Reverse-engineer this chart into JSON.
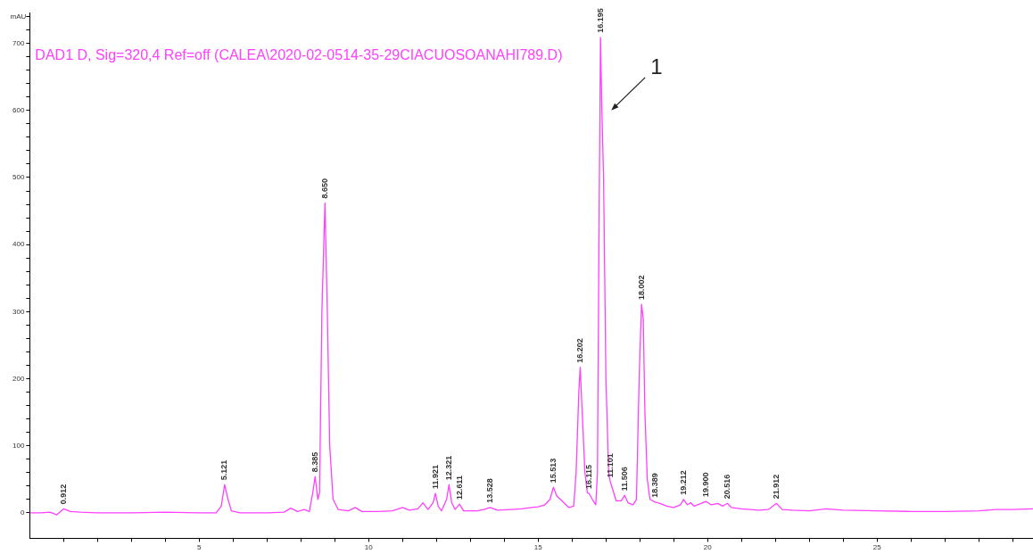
{
  "chart_data": {
    "type": "line",
    "title": "DAD1 D, Sig=320,4 Ref=off (CALEA\\2020-02-0514-35-29CIACUOSOANAHI789.D)",
    "ylabel": "mAU",
    "xlim": [
      0,
      29.6
    ],
    "xticks": [
      {
        "value": 1,
        "label": null
      },
      {
        "value": 2,
        "label": null
      },
      {
        "value": 3,
        "label": null
      },
      {
        "value": 4,
        "label": null
      },
      5,
      {
        "value": 6,
        "label": null
      },
      {
        "value": 7,
        "label": null
      },
      {
        "value": 8,
        "label": null
      },
      {
        "value": 9,
        "label": null
      },
      10,
      {
        "value": 11,
        "label": null
      },
      {
        "value": 12,
        "label": null
      },
      {
        "value": 13,
        "label": null
      },
      {
        "value": 14,
        "label": null
      },
      15,
      {
        "value": 16,
        "label": null
      },
      {
        "value": 17,
        "label": null
      },
      {
        "value": 18,
        "label": null
      },
      {
        "value": 19,
        "label": null
      },
      20,
      {
        "value": 21,
        "label": null
      },
      {
        "value": 22,
        "label": null
      },
      {
        "value": 23,
        "label": null
      },
      {
        "value": 24,
        "label": null
      },
      25,
      {
        "value": 26,
        "label": null
      },
      {
        "value": 27,
        "label": null
      },
      {
        "value": 28,
        "label": null
      },
      {
        "value": 29,
        "label": null
      }
    ],
    "ylim": [
      -38,
      745
    ],
    "yticks": [
      0,
      {
        "value": 20,
        "label": null
      },
      {
        "value": 40,
        "label": null
      },
      {
        "value": 60,
        "label": null
      },
      {
        "value": 80,
        "label": null
      },
      100,
      {
        "value": 120,
        "label": null
      },
      {
        "value": 140,
        "label": null
      },
      {
        "value": 160,
        "label": null
      },
      {
        "value": 180,
        "label": null
      },
      200,
      {
        "value": 220,
        "label": null
      },
      {
        "value": 240,
        "label": null
      },
      {
        "value": 260,
        "label": null
      },
      {
        "value": 280,
        "label": null
      },
      300,
      {
        "value": 320,
        "label": null
      },
      {
        "value": 340,
        "label": null
      },
      {
        "value": 360,
        "label": null
      },
      {
        "value": 380,
        "label": null
      },
      400,
      {
        "value": 420,
        "label": null
      },
      {
        "value": 440,
        "label": null
      },
      {
        "value": 460,
        "label": null
      },
      {
        "value": 480,
        "label": null
      },
      500,
      {
        "value": 520,
        "label": null
      },
      {
        "value": 540,
        "label": null
      },
      {
        "value": 560,
        "label": null
      },
      {
        "value": 580,
        "label": null
      },
      600,
      {
        "value": 620,
        "label": null
      },
      {
        "value": 640,
        "label": null
      },
      {
        "value": 660,
        "label": null
      },
      {
        "value": 680,
        "label": null
      },
      700,
      {
        "value": 720,
        "label": null
      },
      {
        "value": 740,
        "label": null
      }
    ],
    "grid": false,
    "legend": false,
    "marker": "none",
    "line_style": "solid",
    "series": [
      {
        "color": "#ff40ff",
        "x": [
          0,
          0.3,
          0.6,
          0.8,
          1.0,
          1.2,
          1.5,
          2,
          3,
          4,
          5,
          5.5,
          5.65,
          5.75,
          5.85,
          5.95,
          6.2,
          7,
          7.5,
          7.7,
          7.9,
          8.1,
          8.25,
          8.35,
          8.42,
          8.5,
          8.55,
          8.62,
          8.71,
          8.78,
          8.85,
          8.95,
          9.1,
          9.4,
          9.6,
          9.8,
          10.3,
          10.7,
          11.0,
          11.2,
          11.45,
          11.6,
          11.75,
          11.9,
          11.97,
          12.05,
          12.15,
          12.3,
          12.37,
          12.45,
          12.55,
          12.68,
          12.8,
          13.2,
          13.4,
          13.58,
          13.8,
          14.2,
          14.5,
          14.8,
          15.0,
          15.2,
          15.35,
          15.45,
          15.55,
          15.7,
          15.9,
          16.05,
          16.12,
          16.2,
          16.24,
          16.3,
          16.38,
          16.45,
          16.5,
          16.6,
          16.7,
          16.75,
          16.8,
          16.84,
          16.88,
          16.93,
          17.0,
          17.08,
          17.13,
          17.2,
          17.3,
          17.45,
          17.55,
          17.65,
          17.8,
          17.9,
          17.98,
          18.05,
          18.1,
          18.15,
          18.22,
          18.3,
          18.45,
          18.6,
          18.8,
          19.0,
          19.2,
          19.29,
          19.4,
          19.5,
          19.6,
          19.8,
          19.95,
          20.1,
          20.3,
          20.45,
          20.58,
          20.7,
          21.0,
          21.5,
          21.8,
          22.03,
          22.2,
          22.5,
          23,
          23.5,
          24,
          25,
          26,
          27,
          28,
          28.5,
          29,
          29.6
        ],
        "values": [
          0,
          0,
          1,
          -3,
          6,
          2,
          1,
          0,
          0,
          1,
          0,
          0,
          10,
          42,
          20,
          3,
          0,
          0,
          1,
          7,
          2,
          5,
          2,
          30,
          54,
          20,
          30,
          300,
          462,
          300,
          100,
          20,
          5,
          3,
          8,
          2,
          2,
          3,
          8,
          4,
          6,
          15,
          5,
          15,
          29,
          10,
          3,
          20,
          42,
          15,
          5,
          13,
          3,
          3,
          5,
          8,
          4,
          5,
          6,
          8,
          9,
          12,
          20,
          38,
          25,
          18,
          8,
          10,
          60,
          180,
          217,
          150,
          60,
          30,
          29,
          20,
          12,
          60,
          450,
          709,
          600,
          500,
          200,
          60,
          46,
          35,
          18,
          18,
          26,
          15,
          12,
          20,
          200,
          311,
          290,
          150,
          50,
          20,
          16,
          14,
          10,
          8,
          12,
          20,
          12,
          15,
          10,
          14,
          17,
          12,
          14,
          10,
          14,
          8,
          6,
          4,
          5,
          14,
          5,
          4,
          3,
          6,
          4,
          3,
          2,
          2,
          3,
          5,
          5,
          6
        ]
      }
    ],
    "annotations": [
      {
        "text": "0.912",
        "x": 1.0,
        "y": 6
      },
      {
        "text": "5.121",
        "x": 5.75,
        "y": 42
      },
      {
        "text": "8.385",
        "x": 8.42,
        "y": 54
      },
      {
        "text": "8.650",
        "x": 8.71,
        "y": 462
      },
      {
        "text": "11.921",
        "x": 11.97,
        "y": 29
      },
      {
        "text": "12.321",
        "x": 12.37,
        "y": 42
      },
      {
        "text": "12.611",
        "x": 12.68,
        "y": 13
      },
      {
        "text": "13.528",
        "x": 13.58,
        "y": 8
      },
      {
        "text": "15.513",
        "x": 15.45,
        "y": 38
      },
      {
        "text": "16.202",
        "x": 16.24,
        "y": 217
      },
      {
        "text": "16.115",
        "x": 16.5,
        "y": 29
      },
      {
        "text": "16.195",
        "x": 16.84,
        "y": 709
      },
      {
        "text": "11.101",
        "x": 17.13,
        "y": 46
      },
      {
        "text": "11.506",
        "x": 17.55,
        "y": 26
      },
      {
        "text": "18.002",
        "x": 18.05,
        "y": 311
      },
      {
        "text": "18.389",
        "x": 18.45,
        "y": 16
      },
      {
        "text": "19.212",
        "x": 19.29,
        "y": 20
      },
      {
        "text": "19.900",
        "x": 19.95,
        "y": 17
      },
      {
        "text": "20.516",
        "x": 20.58,
        "y": 14
      },
      {
        "text": "21.912",
        "x": 22.03,
        "y": 14
      },
      "1"
    ]
  }
}
